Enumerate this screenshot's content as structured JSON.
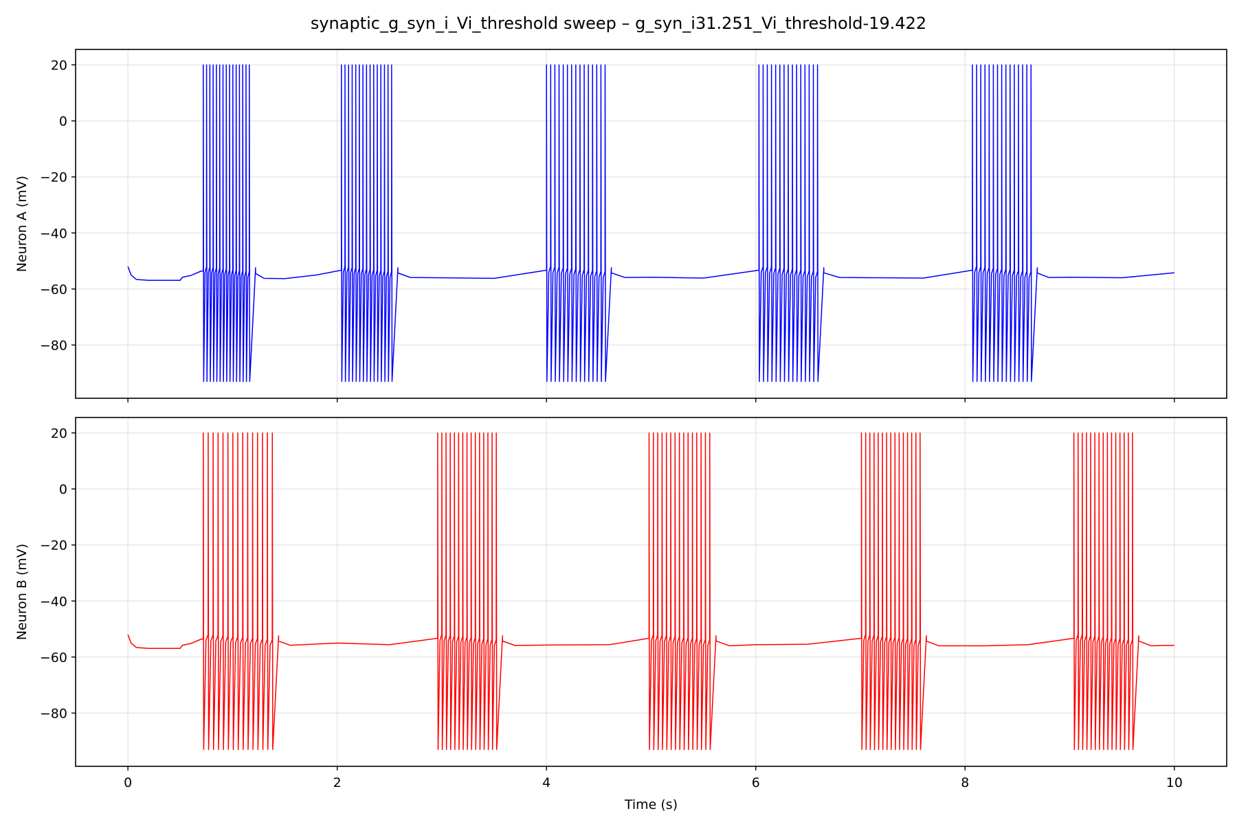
{
  "figure": {
    "title": "synaptic_g_syn_i_Vi_threshold sweep – g_syn_i31.251_Vi_threshold-19.422"
  },
  "chart_data": [
    {
      "type": "line",
      "panel": "top",
      "ylabel": "Neuron A (mV)",
      "xlabel": "",
      "xlim": [
        -0.5,
        10.5
      ],
      "ylim": [
        -99,
        25.5
      ],
      "xticks": [
        0,
        2,
        4,
        6,
        8,
        10
      ],
      "yticks": [
        20,
        0,
        -20,
        -40,
        -60,
        -80
      ],
      "xtick_labels": [
        "0",
        "2",
        "4",
        "6",
        "8",
        "10"
      ],
      "ytick_labels": [
        "20",
        "0",
        "−20",
        "−40",
        "−60",
        "−80"
      ],
      "grid": true,
      "color": "#0000ff",
      "spike_peak_mV": 20,
      "spike_trough_mV": -93,
      "bursts": [
        {
          "start": 0.72,
          "end": 1.16,
          "spikes": 15
        },
        {
          "start": 2.04,
          "end": 2.52,
          "spikes": 15
        },
        {
          "start": 4.0,
          "end": 4.56,
          "spikes": 15
        },
        {
          "start": 6.03,
          "end": 6.59,
          "spikes": 15
        },
        {
          "start": 8.07,
          "end": 8.63,
          "spikes": 15
        }
      ],
      "baseline": [
        [
          0.0,
          -52
        ],
        [
          0.03,
          -55
        ],
        [
          0.08,
          -56.6
        ],
        [
          0.2,
          -56.9
        ],
        [
          0.5,
          -56.9
        ],
        [
          0.52,
          -55.8
        ],
        [
          0.6,
          -55.2
        ],
        [
          0.7,
          -53.6
        ],
        [
          1.16,
          -52.8
        ],
        [
          1.2,
          -54.0
        ],
        [
          1.3,
          -56.2
        ],
        [
          1.5,
          -56.3
        ],
        [
          1.8,
          -55.0
        ],
        [
          2.04,
          -53.3
        ],
        [
          2.52,
          -52.5
        ],
        [
          2.56,
          -54.0
        ],
        [
          2.7,
          -55.9
        ],
        [
          3.0,
          -56.0
        ],
        [
          3.5,
          -56.2
        ],
        [
          4.0,
          -53.3
        ],
        [
          4.56,
          -52.7
        ],
        [
          4.6,
          -54.0
        ],
        [
          4.75,
          -55.9
        ],
        [
          5.0,
          -55.8
        ],
        [
          5.5,
          -56.1
        ],
        [
          6.03,
          -53.3
        ],
        [
          6.59,
          -52.6
        ],
        [
          6.63,
          -54.0
        ],
        [
          6.8,
          -55.9
        ],
        [
          7.2,
          -56.0
        ],
        [
          7.6,
          -56.1
        ],
        [
          8.07,
          -53.3
        ],
        [
          8.63,
          -52.5
        ],
        [
          8.67,
          -54.0
        ],
        [
          8.8,
          -55.9
        ],
        [
          9.0,
          -55.8
        ],
        [
          9.5,
          -56.0
        ],
        [
          10.0,
          -54.2
        ]
      ]
    },
    {
      "type": "line",
      "panel": "bottom",
      "ylabel": "Neuron B (mV)",
      "xlabel": "Time (s)",
      "xlim": [
        -0.5,
        10.5
      ],
      "ylim": [
        -99,
        25.5
      ],
      "xticks": [
        0,
        2,
        4,
        6,
        8,
        10
      ],
      "yticks": [
        20,
        0,
        -20,
        -40,
        -60,
        -80
      ],
      "xtick_labels": [
        "0",
        "2",
        "4",
        "6",
        "8",
        "10"
      ],
      "ytick_labels": [
        "20",
        "0",
        "−20",
        "−40",
        "−60",
        "−80"
      ],
      "grid": true,
      "color": "#ff0000",
      "spike_peak_mV": 20,
      "spike_trough_mV": -93,
      "bursts": [
        {
          "start": 0.72,
          "end": 1.38,
          "spikes": 15
        },
        {
          "start": 2.96,
          "end": 3.52,
          "spikes": 15
        },
        {
          "start": 4.98,
          "end": 5.56,
          "spikes": 15
        },
        {
          "start": 7.01,
          "end": 7.57,
          "spikes": 15
        },
        {
          "start": 9.04,
          "end": 9.6,
          "spikes": 15
        }
      ],
      "baseline": [
        [
          0.0,
          -52
        ],
        [
          0.03,
          -55
        ],
        [
          0.08,
          -56.6
        ],
        [
          0.2,
          -56.9
        ],
        [
          0.5,
          -56.9
        ],
        [
          0.52,
          -55.8
        ],
        [
          0.6,
          -55.2
        ],
        [
          0.7,
          -53.6
        ],
        [
          1.38,
          -52.8
        ],
        [
          1.42,
          -54.0
        ],
        [
          1.55,
          -55.8
        ],
        [
          2.0,
          -55.0
        ],
        [
          2.5,
          -55.6
        ],
        [
          2.96,
          -53.3
        ],
        [
          3.52,
          -52.6
        ],
        [
          3.56,
          -54.0
        ],
        [
          3.7,
          -55.9
        ],
        [
          4.0,
          -55.7
        ],
        [
          4.6,
          -55.6
        ],
        [
          4.98,
          -53.3
        ],
        [
          5.56,
          -52.6
        ],
        [
          5.6,
          -54.0
        ],
        [
          5.75,
          -56.0
        ],
        [
          6.0,
          -55.6
        ],
        [
          6.5,
          -55.4
        ],
        [
          7.01,
          -53.3
        ],
        [
          7.57,
          -52.6
        ],
        [
          7.61,
          -54.0
        ],
        [
          7.75,
          -56.0
        ],
        [
          8.2,
          -56.0
        ],
        [
          8.6,
          -55.6
        ],
        [
          9.04,
          -53.3
        ],
        [
          9.6,
          -52.6
        ],
        [
          9.64,
          -54.0
        ],
        [
          9.78,
          -56.0
        ],
        [
          10.0,
          -55.8
        ]
      ]
    }
  ]
}
